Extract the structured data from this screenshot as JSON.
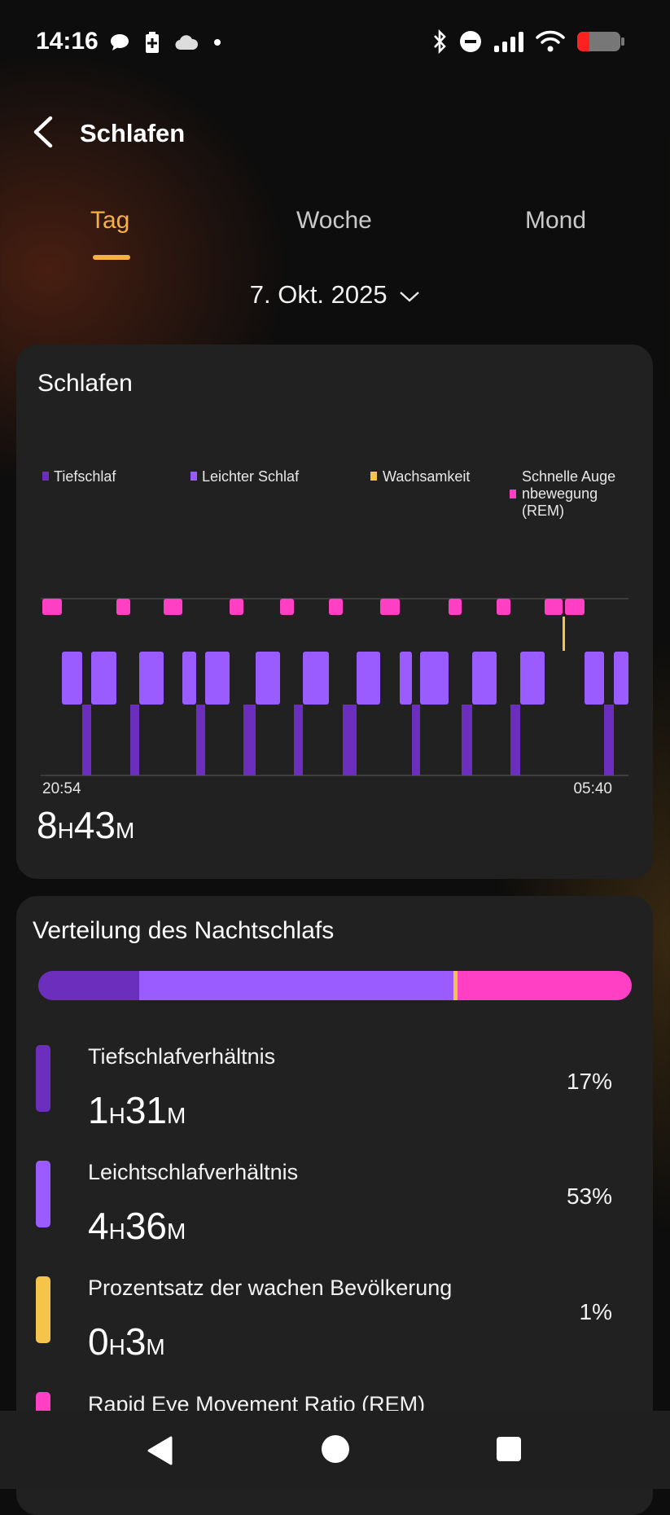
{
  "status_bar": {
    "time": "14:16",
    "icons_left": [
      "chat-bubble-icon",
      "battery-saver-icon",
      "cloud-icon",
      "dot-icon"
    ],
    "icons_right": [
      "bluetooth-icon",
      "do-not-disturb-icon",
      "signal-icon",
      "wifi-icon",
      "battery-low-icon"
    ]
  },
  "header": {
    "title": "Schlafen"
  },
  "tabs": [
    {
      "label": "Tag",
      "active": true
    },
    {
      "label": "Woche",
      "active": false
    },
    {
      "label": "Mond",
      "active": false
    }
  ],
  "date_selector": {
    "label": "7. Okt. 2025"
  },
  "colors": {
    "deep": "#6c2ebd",
    "light": "#9b5cff",
    "awake": "#f5c54b",
    "rem": "#ff3fc4",
    "accent": "#f5b041"
  },
  "sleep_card": {
    "title": "Schlafen",
    "legend": [
      {
        "label": "Tiefschlaf",
        "color": "#6c2ebd"
      },
      {
        "label": "Leichter Schlaf",
        "color": "#9b5cff"
      },
      {
        "label": "Wachsamkeit",
        "color": "#f5c54b"
      },
      {
        "label": "Schnelle Augenbewegung (REM)",
        "lines": [
          "Schnelle Auge",
          "nbewegung",
          "(REM)"
        ],
        "color": "#ff3fc4"
      }
    ],
    "start_time": "20:54",
    "end_time": "05:40",
    "total": {
      "hours": "8",
      "h_unit": "H",
      "minutes": "43",
      "m_unit": "M"
    }
  },
  "distribution_card": {
    "title": "Verteilung des Nachtschlafs",
    "items": [
      {
        "label": "Tiefschlafverhältnis",
        "hours": "1",
        "minutes": "31",
        "percent": "17%",
        "color": "#6c2ebd"
      },
      {
        "label": "Leichtschlafverhältnis",
        "hours": "4",
        "minutes": "36",
        "percent": "53%",
        "color": "#9b5cff"
      },
      {
        "label": "Prozentsatz der wachen Bevölkerung",
        "hours": "0",
        "minutes": "3",
        "percent": "1%",
        "color": "#f5c54b"
      },
      {
        "label": "Rapid Eye Movement Ratio (REM)",
        "color": "#ff3fc4"
      }
    ],
    "h_unit": "H",
    "m_unit": "M"
  },
  "nav_bar": {
    "buttons": [
      "back-icon",
      "home-icon",
      "recents-icon"
    ]
  }
}
